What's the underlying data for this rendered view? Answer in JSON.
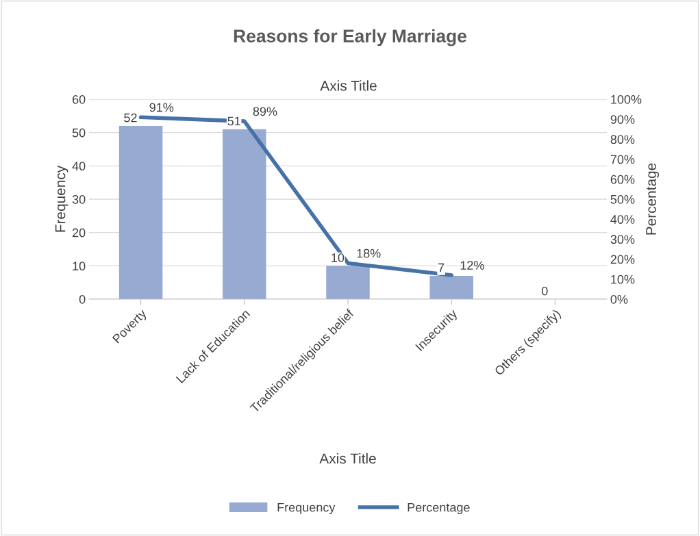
{
  "chart_data": {
    "type": "bar",
    "title": "Reasons for Early Marriage",
    "annotations": [
      "Axis Title"
    ],
    "xlabel": "Axis Title",
    "ylabel": "Frequency",
    "y2label": "Percentage",
    "categories": [
      "Poverty",
      "Lack of Education",
      "Traditional/religious belief",
      "Insecurity",
      "Others (specify)"
    ],
    "series": [
      {
        "name": "Frequency",
        "color": "#97aad2",
        "values": [
          52,
          51,
          10,
          7,
          0
        ],
        "value_labels": [
          "52",
          "51",
          "10",
          "7",
          "0"
        ]
      },
      {
        "name": "Percentage",
        "type": "line",
        "axis": "y2",
        "color": "#4672a8",
        "values": [
          91,
          89,
          18,
          12,
          null
        ],
        "value_labels": [
          "91%",
          "89%",
          "18%",
          "12%",
          null
        ]
      }
    ],
    "ylim": [
      0,
      60
    ],
    "yticks": [
      0,
      10,
      20,
      30,
      40,
      50,
      60
    ],
    "y2lim": [
      0,
      100
    ],
    "y2ticks": [
      {
        "value": 0,
        "label": "0%"
      },
      {
        "value": 10,
        "label": "10%"
      },
      {
        "value": 20,
        "label": "20%"
      },
      {
        "value": 30,
        "label": "30%"
      },
      {
        "value": 40,
        "label": "40%"
      },
      {
        "value": 50,
        "label": "50%"
      },
      {
        "value": 60,
        "label": "60%"
      },
      {
        "value": 70,
        "label": "70%"
      },
      {
        "value": 80,
        "label": "80%"
      },
      {
        "value": 90,
        "label": "90%"
      },
      {
        "value": 100,
        "label": "100%"
      }
    ],
    "grid": "y",
    "legend": "bottom",
    "marker": "none",
    "line_style": "solid"
  }
}
